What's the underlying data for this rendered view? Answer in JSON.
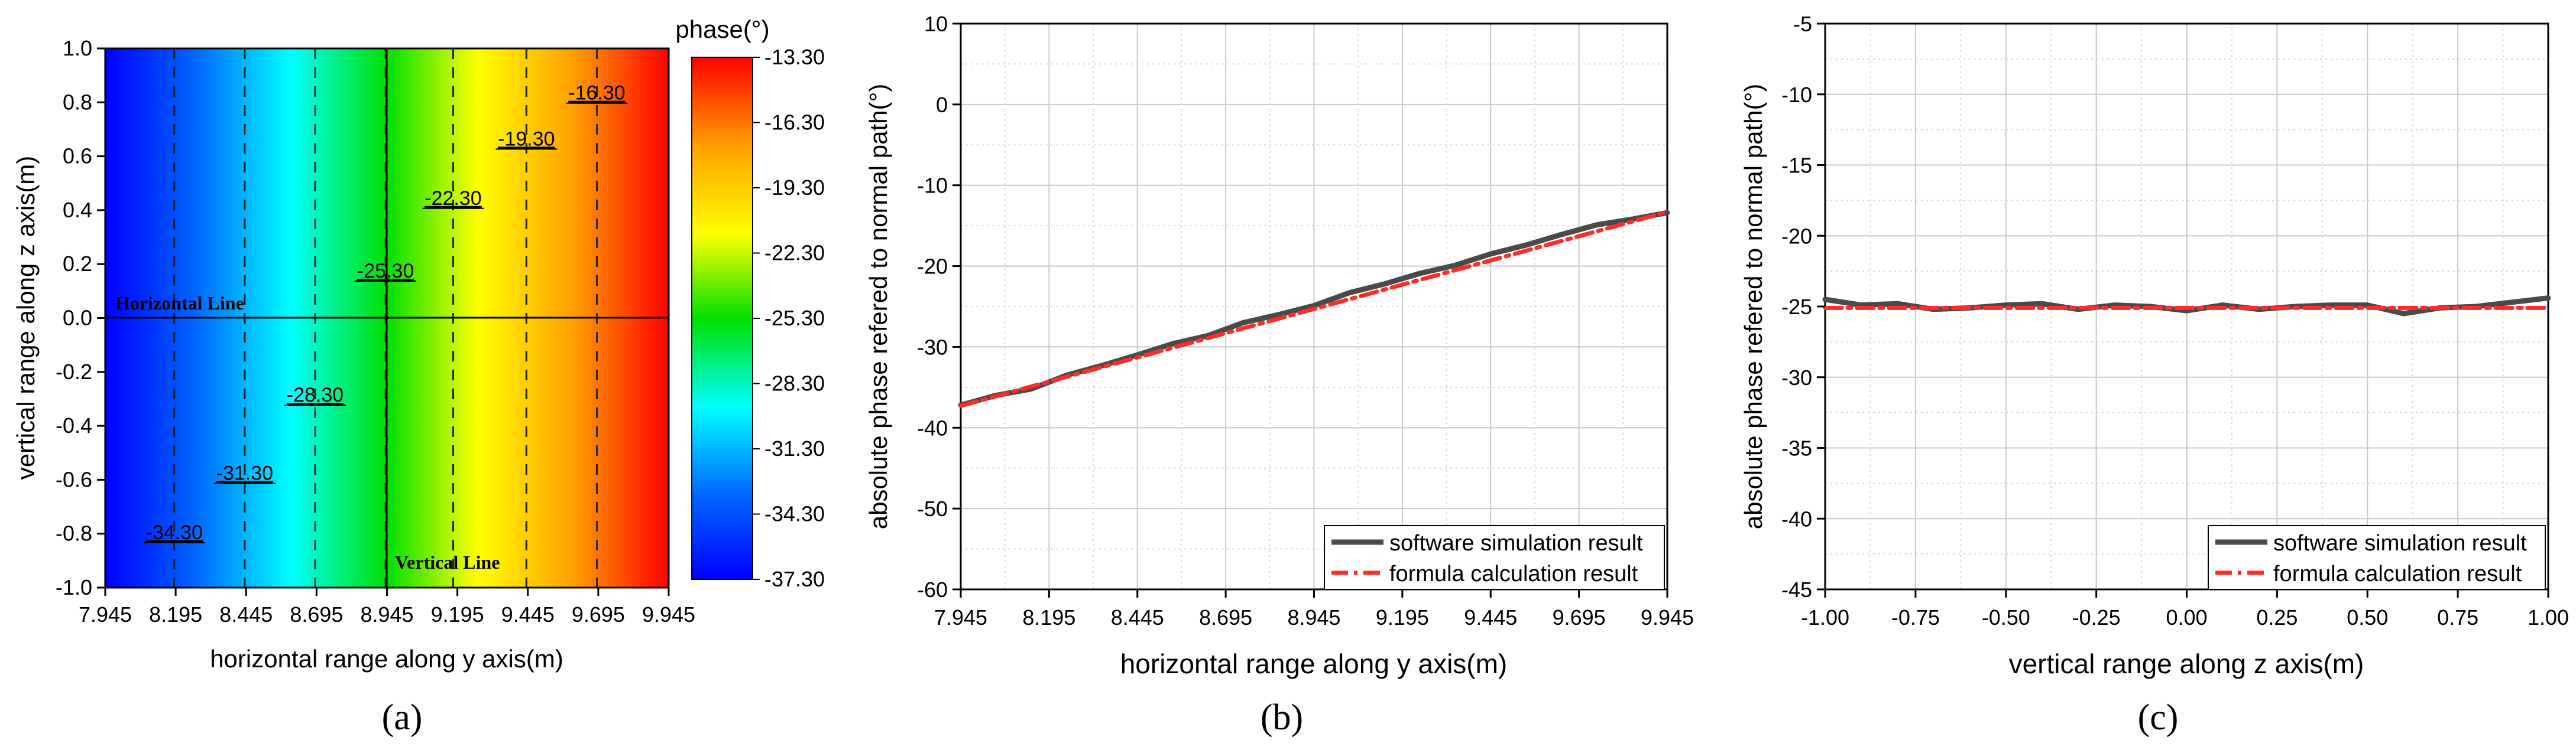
{
  "colors": {
    "simulation": "#4a4a4a",
    "formula": "#ff2a2a",
    "colormap": [
      "#0000ff",
      "#00aaff",
      "#00ffff",
      "#00e000",
      "#ffff00",
      "#ffa000",
      "#ff0000"
    ]
  },
  "chart_data": [
    {
      "type": "heatmap",
      "caption": "(a)",
      "xlabel": "horizontal range along y axis(m)",
      "ylabel": "vertical range along z axis(m)",
      "xlim": [
        7.945,
        9.945
      ],
      "ylim": [
        -1.0,
        1.0
      ],
      "xticks": [
        "7.945",
        "8.195",
        "8.445",
        "8.695",
        "8.945",
        "9.195",
        "9.445",
        "9.695",
        "9.945"
      ],
      "yticks": [
        "-1.0",
        "-0.8",
        "-0.6",
        "-0.4",
        "-0.2",
        "0.0",
        "0.2",
        "0.4",
        "0.6",
        "0.8",
        "1.0"
      ],
      "colorbar": {
        "label": "phase(°)",
        "range": [
          -37.3,
          -13.3
        ],
        "ticks": [
          "-13.30",
          "-16.30",
          "-19.30",
          "-22.30",
          "-25.30",
          "-28.30",
          "-31.30",
          "-34.30",
          "-37.30"
        ]
      },
      "contours": [
        {
          "label": "-34.30",
          "y": 8.19,
          "label_at": [
            8.19,
            -0.82
          ]
        },
        {
          "label": "-31.30",
          "y": 8.44,
          "label_at": [
            8.44,
            -0.6
          ]
        },
        {
          "label": "-28.30",
          "y": 8.69,
          "label_at": [
            8.69,
            -0.31
          ]
        },
        {
          "label": "-25.30",
          "y": 8.94,
          "label_at": [
            8.94,
            0.15
          ]
        },
        {
          "label": "-22.30",
          "y": 9.18,
          "label_at": [
            9.18,
            0.42
          ]
        },
        {
          "label": "-19.30",
          "y": 9.44,
          "label_at": [
            9.44,
            0.64
          ]
        },
        {
          "label": "-16.30",
          "y": 9.69,
          "label_at": [
            9.69,
            0.81
          ]
        }
      ],
      "reference_lines": {
        "horizontal": {
          "label": "Horizontal Line",
          "z": 0.0
        },
        "vertical": {
          "label": "Vertical Line",
          "y": 8.945
        }
      }
    },
    {
      "type": "line",
      "caption": "(b)",
      "xlabel": "horizontal range along y axis(m)",
      "ylabel": "absolute phase refered to normal path(°)",
      "xlim": [
        7.945,
        9.945
      ],
      "ylim": [
        -60,
        10
      ],
      "xticks": [
        "7.945",
        "8.195",
        "8.445",
        "8.695",
        "8.945",
        "9.195",
        "9.445",
        "9.695",
        "9.945"
      ],
      "yticks": [
        "10",
        "0",
        "-10",
        "-20",
        "-30",
        "-40",
        "-50",
        "-60"
      ],
      "grid": true,
      "legend_position": "bottom-right",
      "series": [
        {
          "name": "software simulation result",
          "style": "solid",
          "x": [
            7.945,
            8.045,
            8.145,
            8.245,
            8.345,
            8.445,
            8.545,
            8.645,
            8.745,
            8.845,
            8.945,
            9.045,
            9.145,
            9.245,
            9.345,
            9.445,
            9.545,
            9.645,
            9.745,
            9.845,
            9.945
          ],
          "values": [
            -37.2,
            -36.0,
            -35.2,
            -33.5,
            -32.3,
            -31.0,
            -29.6,
            -28.6,
            -27.0,
            -26.0,
            -24.9,
            -23.3,
            -22.2,
            -20.9,
            -19.9,
            -18.5,
            -17.4,
            -16.1,
            -14.9,
            -14.2,
            -13.4
          ]
        },
        {
          "name": "formula calculation result",
          "style": "dashdot",
          "x": [
            7.945,
            9.945
          ],
          "values": [
            -37.3,
            -13.3
          ]
        }
      ]
    },
    {
      "type": "line",
      "caption": "(c)",
      "xlabel": "vertical range along z axis(m)",
      "ylabel": "absolute phase refered to normal path(°)",
      "xlim": [
        -1.0,
        1.0
      ],
      "ylim": [
        -45,
        -5
      ],
      "xticks": [
        "-1.00",
        "-0.75",
        "-0.50",
        "-0.25",
        "0.00",
        "0.25",
        "0.50",
        "0.75",
        "1.00"
      ],
      "yticks": [
        "-5",
        "-10",
        "-15",
        "-20",
        "-25",
        "-30",
        "-35",
        "-40",
        "-45"
      ],
      "grid": true,
      "legend_position": "bottom-right",
      "series": [
        {
          "name": "software simulation result",
          "style": "solid",
          "x": [
            -1.0,
            -0.9,
            -0.8,
            -0.7,
            -0.6,
            -0.5,
            -0.4,
            -0.3,
            -0.2,
            -0.1,
            0.0,
            0.1,
            0.2,
            0.3,
            0.4,
            0.5,
            0.6,
            0.7,
            0.8,
            0.9,
            1.0
          ],
          "values": [
            -24.5,
            -24.9,
            -24.8,
            -25.2,
            -25.1,
            -24.9,
            -24.8,
            -25.2,
            -24.9,
            -25.0,
            -25.3,
            -24.9,
            -25.2,
            -25.0,
            -24.9,
            -24.9,
            -25.5,
            -25.1,
            -25.0,
            -24.7,
            -24.4
          ]
        },
        {
          "name": "formula calculation result",
          "style": "dashdot",
          "x": [
            -1.0,
            1.0
          ],
          "values": [
            -25.1,
            -25.1
          ]
        }
      ]
    }
  ]
}
